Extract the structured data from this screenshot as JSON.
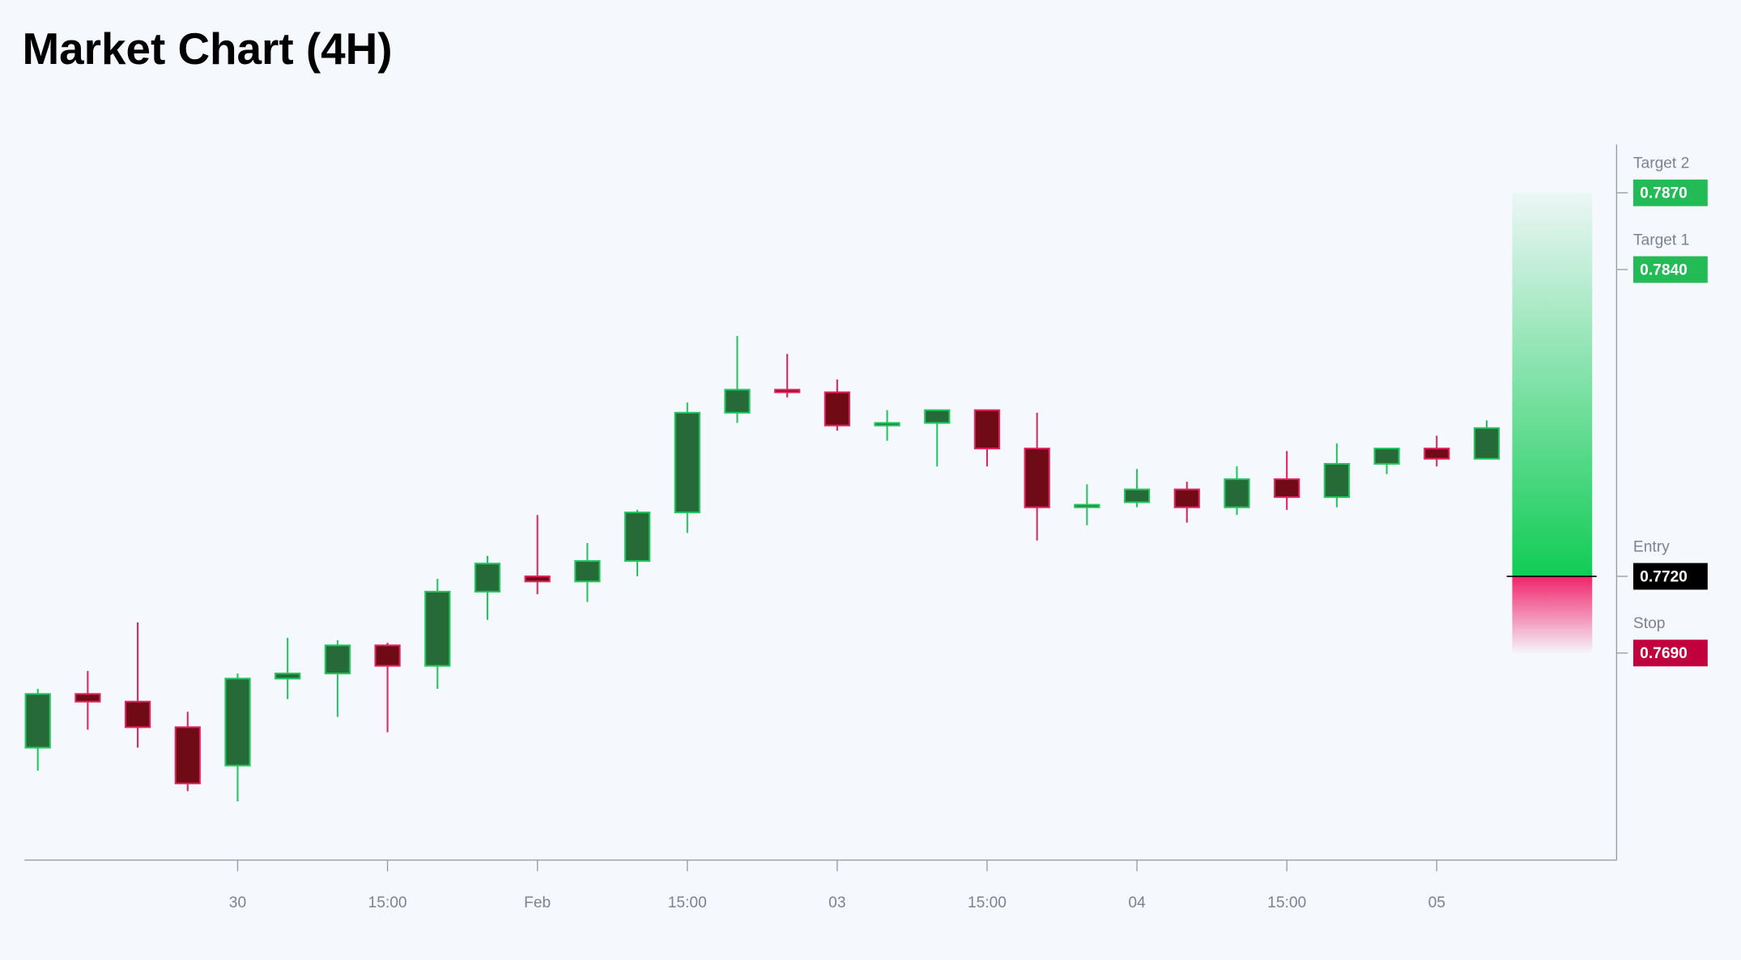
{
  "chart_data": {
    "type": "candlestick",
    "title": "Market Chart (4H)",
    "categories": [
      null,
      null,
      null,
      null,
      "30",
      null,
      null,
      "15:00",
      null,
      null,
      "Feb",
      null,
      null,
      "15:00",
      null,
      null,
      "03",
      null,
      null,
      "15:00",
      null,
      null,
      "04",
      null,
      null,
      "15:00",
      null,
      null,
      "05",
      null
    ],
    "open": [
      0.7653,
      0.7674,
      0.7671,
      0.7661,
      0.7646,
      0.768,
      0.7682,
      0.7693,
      0.7685,
      0.7714,
      0.772,
      0.7718,
      0.7726,
      0.7745,
      0.7784,
      0.7793,
      0.7792,
      0.7779,
      0.778,
      0.7785,
      0.777,
      0.7747,
      0.7749,
      0.7754,
      0.7747,
      0.7758,
      0.7751,
      0.7764,
      0.777,
      0.7766
    ],
    "high": [
      0.7676,
      0.7683,
      0.7702,
      0.7667,
      0.7682,
      0.7696,
      0.7695,
      0.7694,
      0.7719,
      0.7728,
      0.7744,
      0.7733,
      0.7746,
      0.7788,
      0.7814,
      0.7807,
      0.7797,
      0.7785,
      0.7785,
      0.7785,
      0.7784,
      0.7756,
      0.7762,
      0.7757,
      0.7763,
      0.7769,
      0.7772,
      0.777,
      0.7775,
      0.7781
    ],
    "low": [
      0.7644,
      0.766,
      0.7653,
      0.7636,
      0.7632,
      0.7672,
      0.7665,
      0.7659,
      0.7676,
      0.7703,
      0.7713,
      0.771,
      0.772,
      0.7737,
      0.778,
      0.779,
      0.7777,
      0.7773,
      0.7763,
      0.7763,
      0.7734,
      0.774,
      0.7747,
      0.7741,
      0.7744,
      0.7746,
      0.7747,
      0.776,
      0.7763,
      0.7766
    ],
    "close": [
      0.7674,
      0.7671,
      0.7661,
      0.7639,
      0.768,
      0.7682,
      0.7693,
      0.7685,
      0.7714,
      0.7725,
      0.7718,
      0.7726,
      0.7745,
      0.7784,
      0.7793,
      0.7792,
      0.7779,
      0.778,
      0.7785,
      0.777,
      0.7747,
      0.7748,
      0.7754,
      0.7747,
      0.7758,
      0.7751,
      0.7764,
      0.777,
      0.7766,
      0.7778
    ],
    "up_color": "#266a37",
    "up_edge": "#22c55e",
    "down_color": "#6e0b15",
    "down_edge": "#e0245e",
    "ylim": [
      0.7609,
      0.7889
    ],
    "levels": [
      {
        "name": "Target 2",
        "value": 0.787,
        "label": "0.7870",
        "color": "#22bb55"
      },
      {
        "name": "Target 1",
        "value": 0.784,
        "label": "0.7840",
        "color": "#22bb55"
      },
      {
        "name": "Entry",
        "value": 0.772,
        "label": "0.7720",
        "color": "#000000"
      },
      {
        "name": "Stop",
        "value": 0.769,
        "label": "0.7690",
        "color": "#c2003e"
      }
    ]
  }
}
